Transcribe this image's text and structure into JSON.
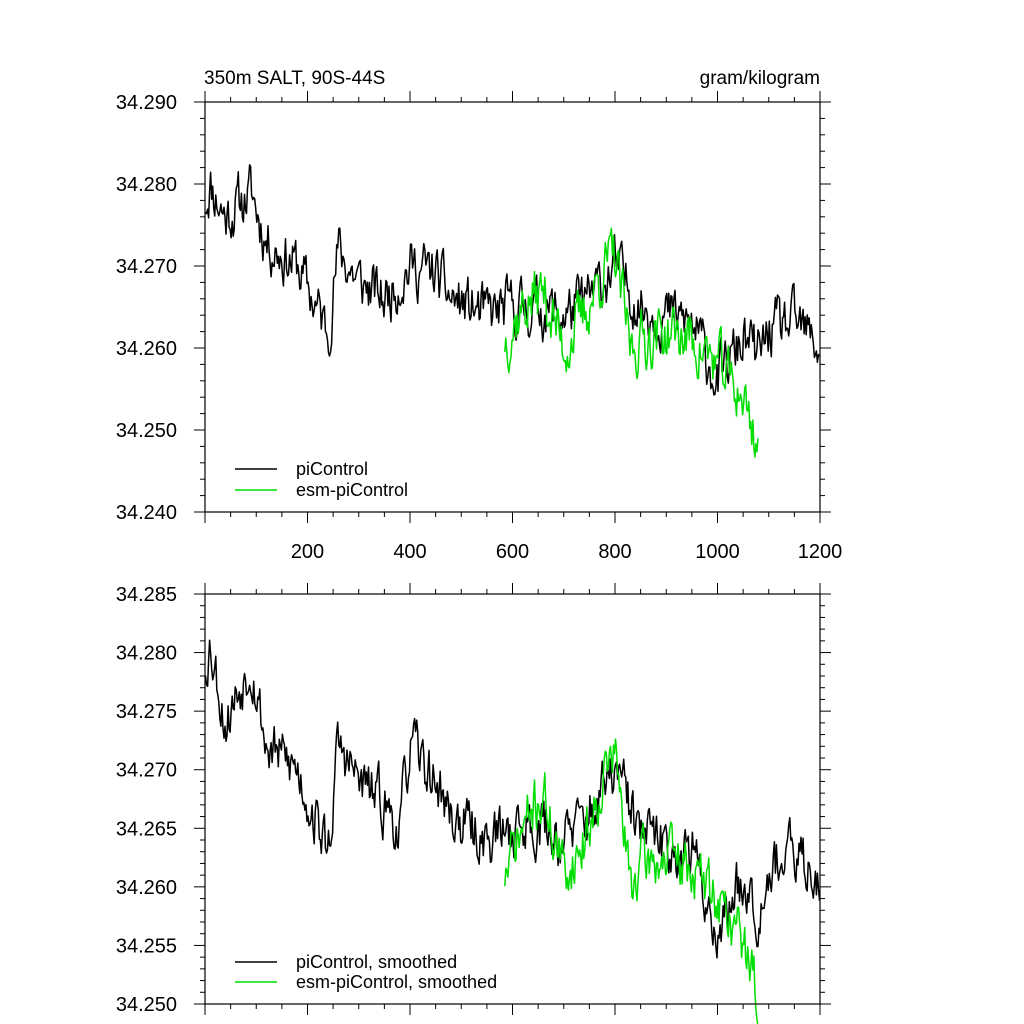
{
  "chart_data": [
    {
      "type": "line",
      "title_left": "350m SALT, 90S-44S",
      "title_right": "gram/kilogram",
      "xlim": [
        0,
        1200
      ],
      "ylim": [
        34.24,
        34.29
      ],
      "yticks": [
        "34.290",
        "34.280",
        "34.270",
        "34.260",
        "34.250",
        "34.240"
      ],
      "xticks": [
        "200",
        "400",
        "600",
        "800",
        "1000",
        "1200"
      ],
      "series": [
        {
          "name": "piControl",
          "color": "#000000",
          "x_start": 1,
          "x_end": 1200,
          "noise": 0.0028,
          "seed": 11,
          "knots": [
            [
              1,
              34.278
            ],
            [
              10,
              34.28
            ],
            [
              40,
              34.276
            ],
            [
              90,
              34.279
            ],
            [
              120,
              34.273
            ],
            [
              180,
              34.27
            ],
            [
              240,
              34.262
            ],
            [
              260,
              34.272
            ],
            [
              300,
              34.268
            ],
            [
              350,
              34.266
            ],
            [
              400,
              34.27
            ],
            [
              450,
              34.269
            ],
            [
              480,
              34.266
            ],
            [
              550,
              34.264
            ],
            [
              600,
              34.265
            ],
            [
              650,
              34.265
            ],
            [
              700,
              34.264
            ],
            [
              750,
              34.266
            ],
            [
              800,
              34.27
            ],
            [
              850,
              34.265
            ],
            [
              900,
              34.264
            ],
            [
              950,
              34.263
            ],
            [
              1000,
              34.256
            ],
            [
              1050,
              34.261
            ],
            [
              1080,
              34.259
            ],
            [
              1100,
              34.262
            ],
            [
              1150,
              34.263
            ],
            [
              1200,
              34.26
            ]
          ]
        },
        {
          "name": "esm-piControl",
          "color": "#00dd00",
          "x_start": 585,
          "x_end": 1080,
          "noise": 0.003,
          "seed": 37,
          "knots": [
            [
              585,
              34.261
            ],
            [
              620,
              34.265
            ],
            [
              660,
              34.267
            ],
            [
              700,
              34.26
            ],
            [
              740,
              34.264
            ],
            [
              780,
              34.27
            ],
            [
              800,
              34.271
            ],
            [
              830,
              34.26
            ],
            [
              850,
              34.261
            ],
            [
              900,
              34.262
            ],
            [
              950,
              34.261
            ],
            [
              1000,
              34.258
            ],
            [
              1050,
              34.254
            ],
            [
              1080,
              34.248
            ]
          ]
        }
      ],
      "legend": {
        "position": "bottom-left",
        "entries": [
          "piControl",
          "esm-piControl"
        ]
      }
    },
    {
      "type": "line",
      "xlim": [
        0,
        1200
      ],
      "ylim": [
        34.25,
        34.285
      ],
      "yticks": [
        "34.285",
        "34.280",
        "34.275",
        "34.270",
        "34.265",
        "34.260",
        "34.255",
        "34.250"
      ],
      "xticks": [],
      "series": [
        {
          "name": "piControl, smoothed",
          "color": "#000000",
          "x_start": 1,
          "x_end": 1200,
          "noise": 0.002,
          "seed": 53,
          "knots": [
            [
              1,
              34.279
            ],
            [
              10,
              34.281
            ],
            [
              40,
              34.274
            ],
            [
              90,
              34.2795
            ],
            [
              120,
              34.272
            ],
            [
              180,
              34.27
            ],
            [
              240,
              34.263
            ],
            [
              260,
              34.272
            ],
            [
              300,
              34.269
            ],
            [
              350,
              34.267
            ],
            [
              380,
              34.265
            ],
            [
              400,
              34.272
            ],
            [
              450,
              34.269
            ],
            [
              480,
              34.266
            ],
            [
              550,
              34.264
            ],
            [
              600,
              34.265
            ],
            [
              650,
              34.2655
            ],
            [
              700,
              34.264
            ],
            [
              750,
              34.266
            ],
            [
              800,
              34.27
            ],
            [
              850,
              34.2645
            ],
            [
              900,
              34.2635
            ],
            [
              950,
              34.263
            ],
            [
              1000,
              34.256
            ],
            [
              1050,
              34.261
            ],
            [
              1080,
              34.258
            ],
            [
              1100,
              34.262
            ],
            [
              1150,
              34.2625
            ],
            [
              1200,
              34.261
            ]
          ]
        },
        {
          "name": "esm-piControl, smoothed",
          "color": "#00dd00",
          "x_start": 585,
          "x_end": 1080,
          "noise": 0.002,
          "seed": 71,
          "knots": [
            [
              585,
              34.261
            ],
            [
              620,
              34.265
            ],
            [
              660,
              34.268
            ],
            [
              700,
              34.261
            ],
            [
              740,
              34.264
            ],
            [
              780,
              34.27
            ],
            [
              800,
              34.2715
            ],
            [
              830,
              34.26
            ],
            [
              850,
              34.262
            ],
            [
              900,
              34.2625
            ],
            [
              950,
              34.2615
            ],
            [
              1000,
              34.259
            ],
            [
              1050,
              34.2555
            ],
            [
              1080,
              34.2505
            ]
          ]
        }
      ],
      "legend": {
        "position": "bottom-left",
        "entries": [
          "piControl, smoothed",
          "esm-piControl, smoothed"
        ]
      }
    }
  ]
}
